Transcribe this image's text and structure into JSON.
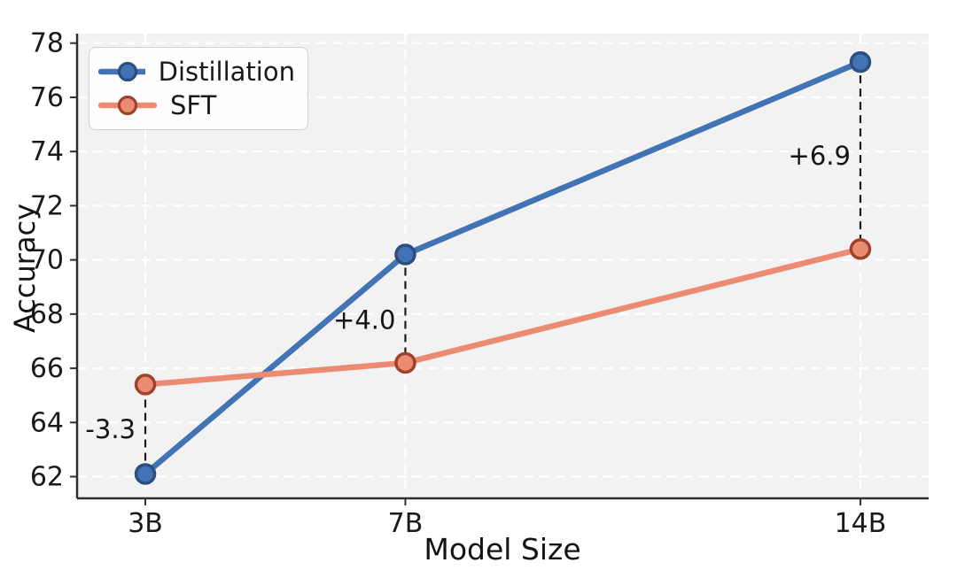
{
  "chart_data": {
    "type": "line",
    "title": "",
    "xlabel": "Model Size",
    "ylabel": "Accuracy",
    "categories": [
      "3B",
      "7B",
      "14B"
    ],
    "x_numeric": [
      3,
      7,
      14
    ],
    "series": [
      {
        "name": "Distillation",
        "color": "#4273B4",
        "marker_edge": "#2D4E7E",
        "values": [
          62.1,
          70.2,
          77.3
        ]
      },
      {
        "name": "SFT",
        "color": "#EB8C72",
        "marker_edge": "#A0412D",
        "values": [
          65.4,
          66.2,
          70.4
        ]
      }
    ],
    "annotations": [
      {
        "x": 3,
        "label": "-3.3",
        "dy": 0
      },
      {
        "x": 7,
        "label": "+4.0",
        "dy": 13
      },
      {
        "x": 14,
        "label": "+6.9",
        "dy": 0
      }
    ],
    "y_ticks": [
      62,
      64,
      66,
      68,
      70,
      72,
      74,
      76,
      78
    ],
    "ylim": [
      61.2,
      78.35
    ],
    "xlim": [
      1.95,
      15.05
    ],
    "grid": true,
    "legend_position": "upper left",
    "plot_bg": "#f2f2f2",
    "grid_color": "#ffffff",
    "spine_color": "#2e2e2e",
    "connector_color": "#1a1a1a"
  }
}
